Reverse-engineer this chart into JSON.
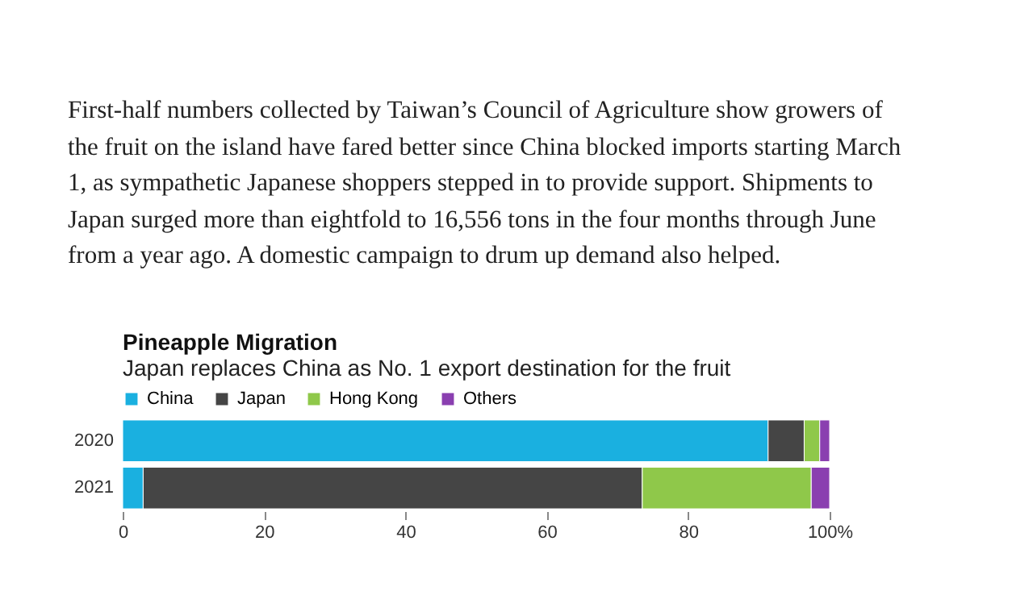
{
  "chart_data": {
    "type": "bar",
    "orientation": "horizontal",
    "stacked": true,
    "title": "Pineapple Migration",
    "subtitle": "Japan replaces China as No. 1 export destination for the fruit",
    "annotations": [
      "First-half numbers collected by Taiwan’s Council of Agriculture show growers of the fruit on the island have fared better since China blocked imports starting March 1, as sympathetic Japanese shoppers stepped in to provide support. Shipments to Japan surged more than eightfold to 16,556 tons in the four months through June from a year ago. A domestic campaign to drum up demand also helped."
    ],
    "categories": [
      "2020",
      "2021"
    ],
    "series": [
      {
        "name": "China",
        "color": "#1ab0e0",
        "values": [
          91.3,
          2.9
        ]
      },
      {
        "name": "Japan",
        "color": "#454545",
        "values": [
          5.1,
          70.6
        ]
      },
      {
        "name": "Hong Kong",
        "color": "#8fc84a",
        "values": [
          2.2,
          23.9
        ]
      },
      {
        "name": "Others",
        "color": "#8a3fb0",
        "values": [
          1.4,
          2.6
        ]
      }
    ],
    "xlim": [
      0,
      100
    ],
    "xticks": [
      0,
      20,
      40,
      60,
      80,
      {
        "value": 100,
        "label": "100%"
      }
    ],
    "legend": "top left",
    "grid": false
  }
}
